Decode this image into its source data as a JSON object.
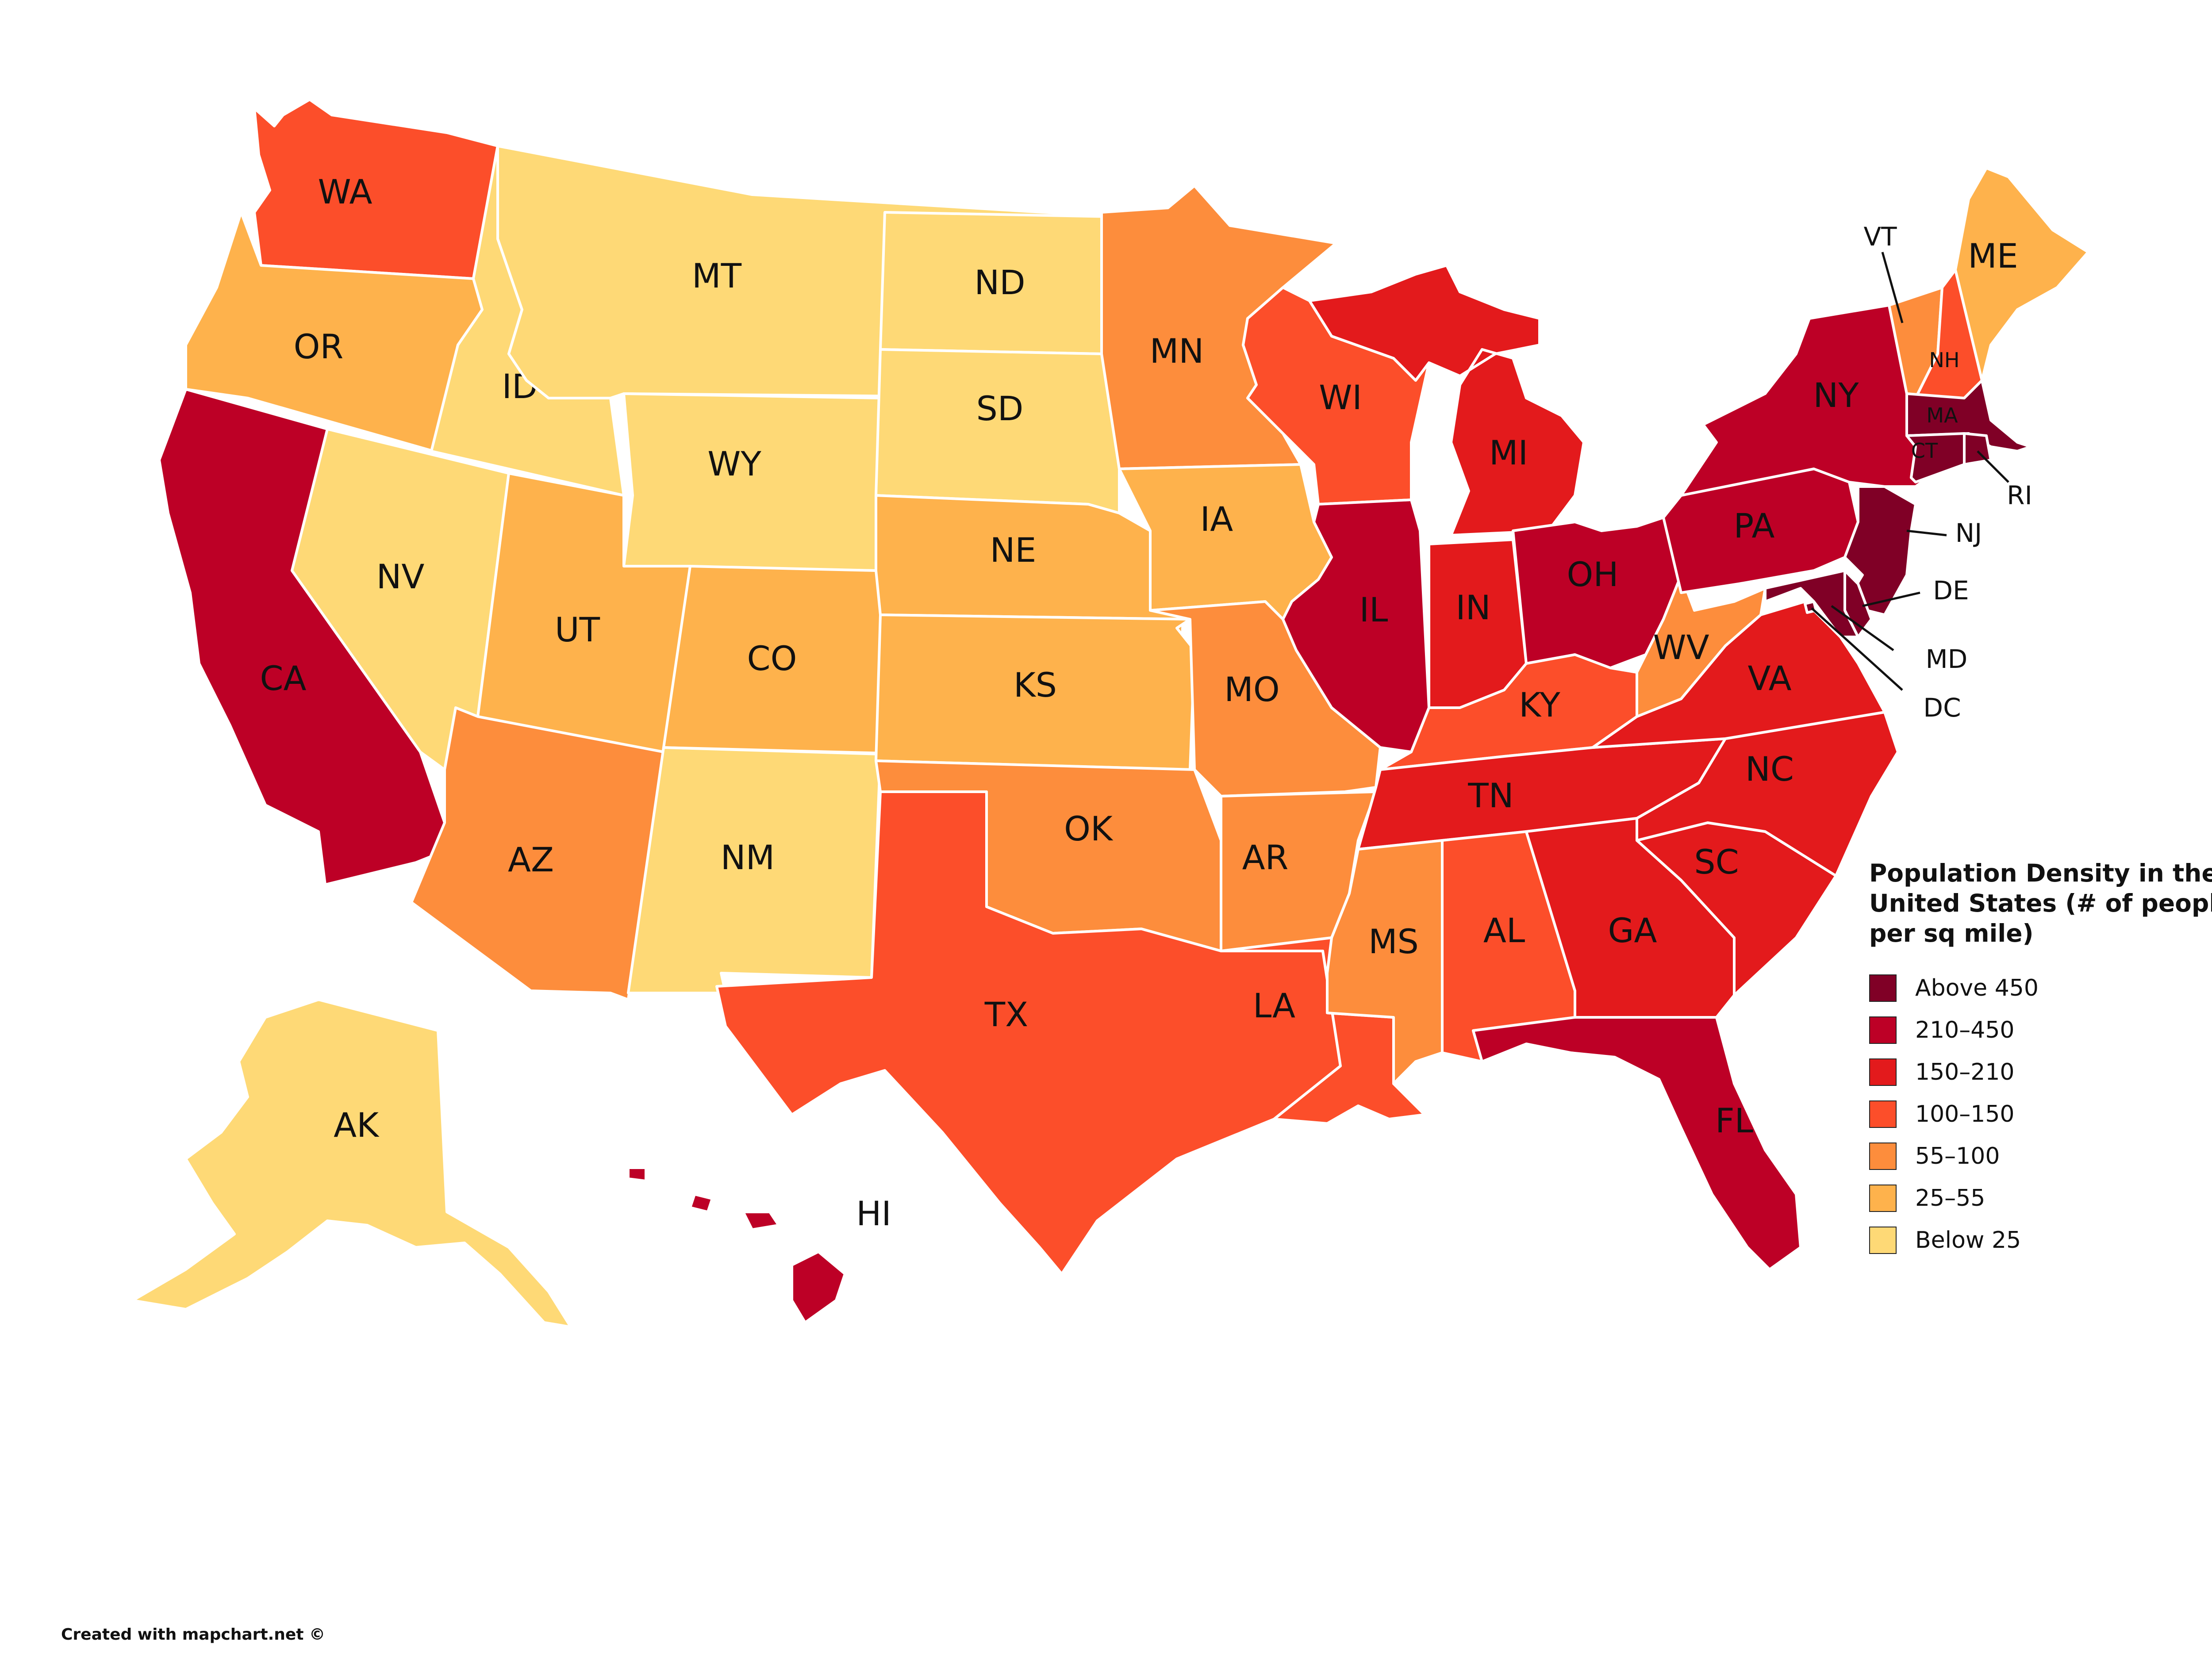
{
  "colors": {
    "above_450": "#800026",
    "d210_450": "#bd0026",
    "d150_210": "#e31a1c",
    "d100_150": "#fc4e2a",
    "d55_100": "#fd8d3c",
    "d25_55": "#feb24c",
    "below_25": "#fed976"
  },
  "legend": {
    "title": "Population Density in the United States (# of people per sq mile)",
    "items": [
      {
        "label": "Above 450",
        "color": "#800026"
      },
      {
        "label": "210–450",
        "color": "#bd0026"
      },
      {
        "label": "150–210",
        "color": "#e31a1c"
      },
      {
        "label": "100–150",
        "color": "#fc4e2a"
      },
      {
        "label": "55–100",
        "color": "#fd8d3c"
      },
      {
        "label": "25–55",
        "color": "#feb24c"
      },
      {
        "label": "Below 25",
        "color": "#fed976"
      }
    ]
  },
  "credit": "Created with mapchart.net ©",
  "states": {
    "WA": {
      "label": "WA",
      "class": "100–150"
    },
    "OR": {
      "label": "OR",
      "class": "25–55"
    },
    "CA": {
      "label": "CA",
      "class": "210–450"
    },
    "ID": {
      "label": "ID",
      "class": "Below 25"
    },
    "NV": {
      "label": "NV",
      "class": "Below 25"
    },
    "MT": {
      "label": "MT",
      "class": "Below 25"
    },
    "WY": {
      "label": "WY",
      "class": "Below 25"
    },
    "UT": {
      "label": "UT",
      "class": "25–55"
    },
    "AZ": {
      "label": "AZ",
      "class": "55–100"
    },
    "CO": {
      "label": "CO",
      "class": "25–55"
    },
    "NM": {
      "label": "NM",
      "class": "Below 25"
    },
    "ND": {
      "label": "ND",
      "class": "Below 25"
    },
    "SD": {
      "label": "SD",
      "class": "Below 25"
    },
    "NE": {
      "label": "NE",
      "class": "25–55"
    },
    "KS": {
      "label": "KS",
      "class": "25–55"
    },
    "OK": {
      "label": "OK",
      "class": "55–100"
    },
    "TX": {
      "label": "TX",
      "class": "100–150"
    },
    "MN": {
      "label": "MN",
      "class": "55–100"
    },
    "IA": {
      "label": "IA",
      "class": "25–55"
    },
    "MO": {
      "label": "MO",
      "class": "55–100"
    },
    "AR": {
      "label": "AR",
      "class": "55–100"
    },
    "LA": {
      "label": "LA",
      "class": "100–150"
    },
    "WI": {
      "label": "WI",
      "class": "100–150"
    },
    "IL": {
      "label": "IL",
      "class": "210–450"
    },
    "MI": {
      "label": "MI",
      "class": "150–210"
    },
    "IN": {
      "label": "IN",
      "class": "150–210"
    },
    "OH": {
      "label": "OH",
      "class": "210–450"
    },
    "KY": {
      "label": "KY",
      "class": "100–150"
    },
    "TN": {
      "label": "TN",
      "class": "150–210"
    },
    "MS": {
      "label": "MS",
      "class": "55–100"
    },
    "AL": {
      "label": "AL",
      "class": "100–150"
    },
    "GA": {
      "label": "GA",
      "class": "150–210"
    },
    "FL": {
      "label": "FL",
      "class": "210–450"
    },
    "SC": {
      "label": "SC",
      "class": "150–210"
    },
    "NC": {
      "label": "NC",
      "class": "150–210"
    },
    "VA": {
      "label": "VA",
      "class": "150–210"
    },
    "WV": {
      "label": "WV",
      "class": "55–100"
    },
    "PA": {
      "label": "PA",
      "class": "210–450"
    },
    "NY": {
      "label": "NY",
      "class": "210–450"
    },
    "VT": {
      "label": "VT",
      "class": "55–100"
    },
    "NH": {
      "label": "NH",
      "class": "100–150"
    },
    "ME": {
      "label": "ME",
      "class": "25–55"
    },
    "MA": {
      "label": "MA",
      "class": "Above 450"
    },
    "RI": {
      "label": "RI",
      "class": "Above 450"
    },
    "CT": {
      "label": "CT",
      "class": "Above 450"
    },
    "NJ": {
      "label": "NJ",
      "class": "Above 450"
    },
    "DE": {
      "label": "DE",
      "class": "Above 450"
    },
    "MD": {
      "label": "MD",
      "class": "Above 450"
    },
    "DC": {
      "label": "DC",
      "class": "Above 450"
    },
    "AK": {
      "label": "AK",
      "class": "Below 25"
    },
    "HI": {
      "label": "HI",
      "class": "210–450"
    }
  }
}
